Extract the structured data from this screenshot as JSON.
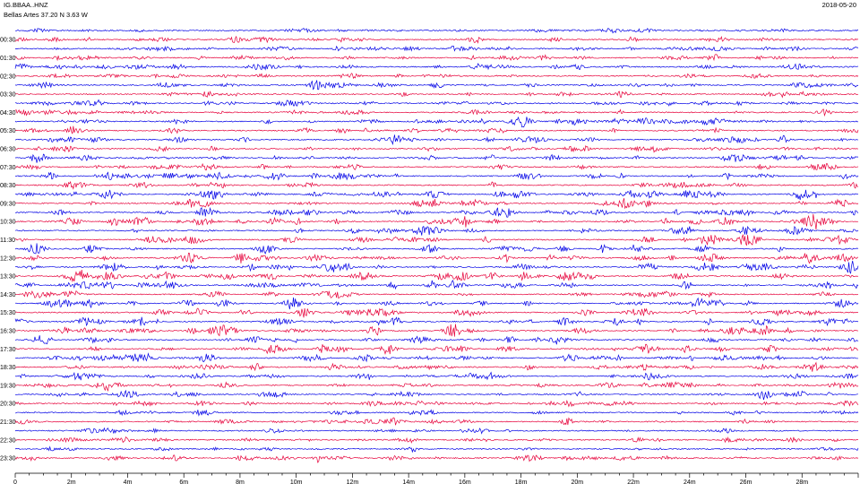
{
  "header": {
    "station": "IG.BBAA..HNZ",
    "location": "Bellas Artes  37.20 N 3.63 W",
    "date": "2018-05-20"
  },
  "colors": {
    "odd_trace": "#0000e6",
    "even_trace": "#e6003a",
    "axis": "#000000"
  },
  "chart_data": {
    "type": "line",
    "title": "",
    "row_labels": [
      "00:30",
      "01:30",
      "02:30",
      "03:30",
      "04:30",
      "05:30",
      "06:30",
      "07:30",
      "08:30",
      "09:30",
      "10:30",
      "11:30",
      "12:30",
      "13:30",
      "14:30",
      "15:30",
      "16:30",
      "17:30",
      "18:30",
      "19:30",
      "20:30",
      "21:30",
      "22:30",
      "23:30"
    ],
    "rows_total": 48,
    "x_ticks": [
      "0",
      "2m",
      "4m",
      "6m",
      "8m",
      "10m",
      "12m",
      "14m",
      "16m",
      "18m",
      "20m",
      "22m",
      "24m",
      "26m",
      "28m"
    ],
    "x_range_minutes": [
      0,
      30
    ],
    "grid": false,
    "notable_events": [
      {
        "row": 47,
        "minute": 10.8,
        "type": "spike"
      },
      {
        "row": 6,
        "minute": 10.7,
        "type": "burst"
      },
      {
        "row": 40,
        "minute": 26.6,
        "type": "burst"
      }
    ]
  }
}
